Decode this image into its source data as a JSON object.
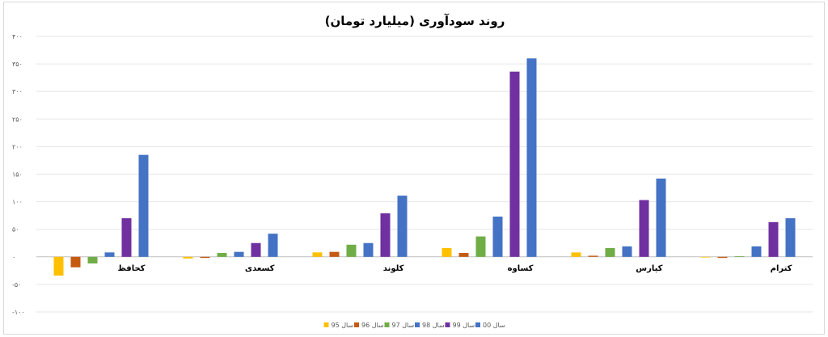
{
  "chart_data": {
    "type": "bar",
    "title": "روند سودآوری (میلیارد تومان)",
    "xlabel": "",
    "ylabel": "",
    "ylim": [
      -100,
      400
    ],
    "ytick_values": [
      -100,
      -50,
      0,
      50,
      100,
      150,
      200,
      250,
      300,
      350,
      400
    ],
    "ytick_labels": [
      "-۱۰۰",
      "-۵۰",
      "۰",
      "۵۰",
      "۱۰۰",
      "۱۵۰",
      "۲۰۰",
      "۲۵۰",
      "۳۰۰",
      "۳۵۰",
      "۴۰۰"
    ],
    "grid": true,
    "legend_position": "bottom",
    "categories": [
      "کحافظ",
      "کسعدی",
      "کلوند",
      "کساوه",
      "کپارس",
      "کترام"
    ],
    "series": [
      {
        "name": "سال 95",
        "color": "#ffc000",
        "values": [
          -34,
          -3,
          8,
          16,
          8,
          0
        ]
      },
      {
        "name": "سال 96",
        "color": "#c55a11",
        "values": [
          -19,
          -2,
          9,
          7,
          2,
          -2
        ]
      },
      {
        "name": "سال 97",
        "color": "#70ad47",
        "values": [
          -12,
          7,
          22,
          37,
          16,
          1
        ]
      },
      {
        "name": "سال 98",
        "color": "#4472c4",
        "values": [
          8,
          9,
          25,
          73,
          19,
          19
        ]
      },
      {
        "name": "سال 99",
        "color": "#7030a0",
        "values": [
          70,
          25,
          79,
          336,
          103,
          63
        ]
      },
      {
        "name": "سال 00",
        "color": "#4472c4",
        "values": [
          185,
          42,
          111,
          360,
          142,
          70
        ]
      }
    ]
  }
}
